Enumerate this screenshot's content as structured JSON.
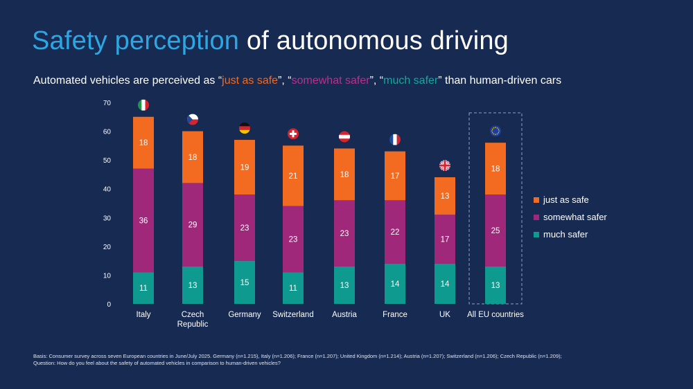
{
  "title": {
    "highlight": "Safety perception",
    "rest": " of autonomous driving"
  },
  "subtitle": {
    "prefix": "Automated vehicles are perceived as “",
    "a": "just as safe",
    "sep1": "”, “",
    "b": "somewhat safer",
    "sep2": "”, “",
    "c": "much safer",
    "suffix": "” than human-driven cars"
  },
  "colors": {
    "background": "#172a52",
    "just_as_safe": "#f26b21",
    "somewhat_safer": "#a0287a",
    "much_safer": "#0f9a8f",
    "title_accent": "#2ea6e2"
  },
  "chart_data": {
    "type": "bar",
    "stacked": true,
    "categories": [
      "Italy",
      "Czech Republic",
      "Germany",
      "Switzerland",
      "Austria",
      "France",
      "UK",
      "All EU countries"
    ],
    "category_flags": [
      "italy-flag",
      "czech-flag",
      "germany-flag",
      "switzerland-flag",
      "austria-flag",
      "france-flag",
      "uk-flag",
      "eu-flag"
    ],
    "series": [
      {
        "name": "much safer",
        "values": [
          11,
          13,
          15,
          11,
          13,
          14,
          14,
          13
        ]
      },
      {
        "name": "somewhat safer",
        "values": [
          36,
          29,
          23,
          23,
          23,
          22,
          17,
          25
        ]
      },
      {
        "name": "just as safe",
        "values": [
          18,
          18,
          19,
          21,
          18,
          17,
          13,
          18
        ]
      }
    ],
    "yticks": [
      0,
      10,
      20,
      30,
      40,
      50,
      60,
      70
    ],
    "ylim": [
      0,
      70
    ],
    "grid": false,
    "legend": "right",
    "highlighted_category": "All EU countries"
  },
  "footnote": {
    "basis": "Basis: Consumer survey across seven European countries in June/July 2025. Germany (n=1.215), Italy (n=1.206); France (n=1.207); United Kingdom (n=1.214); Austria (n=1.207); Switzerland (n=1.206); Czech Republic (n=1.209);",
    "question": "Question: How do you feel about the safety of automated vehicles in comparison to human-driven vehicles?"
  }
}
